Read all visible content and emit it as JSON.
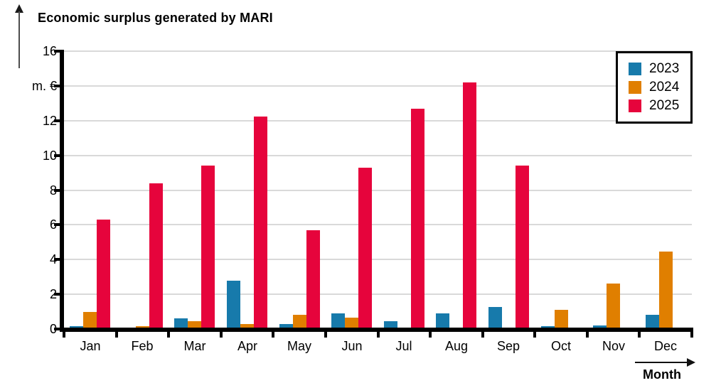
{
  "title": "Economic surplus generated by MARI",
  "x_axis_title": "Month",
  "y_unit_label": "m. €",
  "colors": {
    "grid": "#d9d9d9",
    "axis": "#000000",
    "background": "#ffffff"
  },
  "legend": {
    "position": "top-right",
    "items": [
      "2023",
      "2024",
      "2025"
    ]
  },
  "chart_data": {
    "type": "bar",
    "title": "Economic surplus generated by MARI",
    "xlabel": "Month",
    "ylabel": "m. €",
    "ylim": [
      0,
      16
    ],
    "ytick_step": 2,
    "grid": true,
    "legend_position": "top-right",
    "categories": [
      "Jan",
      "Feb",
      "Mar",
      "Apr",
      "May",
      "Jun",
      "Jul",
      "Aug",
      "Sep",
      "Oct",
      "Nov",
      "Dec"
    ],
    "series": [
      {
        "name": "2023",
        "color": "#177aab",
        "values": [
          0.15,
          0,
          0.6,
          2.8,
          0.3,
          0.9,
          0.45,
          0.9,
          1.25,
          0.15,
          0.2,
          0.8
        ]
      },
      {
        "name": "2024",
        "color": "#e07f00",
        "values": [
          1.0,
          0.15,
          0.45,
          0.3,
          0.8,
          0.65,
          0.1,
          0,
          0.1,
          1.1,
          2.6,
          4.45
        ]
      },
      {
        "name": "2025",
        "color": "#e6043c",
        "values": [
          6.3,
          8.4,
          9.4,
          12.25,
          5.7,
          9.3,
          12.7,
          14.2,
          9.4,
          0,
          0,
          0
        ]
      }
    ],
    "y_tick_labels": [
      {
        "value": 0,
        "label": "0"
      },
      {
        "value": 2,
        "label": "2"
      },
      {
        "value": 4,
        "label": "4"
      },
      {
        "value": 6,
        "label": "6"
      },
      {
        "value": 8,
        "label": "8"
      },
      {
        "value": 10,
        "label": "10"
      },
      {
        "value": 12,
        "label": "12"
      },
      {
        "value": 14,
        "label": "m. €"
      },
      {
        "value": 16,
        "label": "16"
      }
    ]
  }
}
